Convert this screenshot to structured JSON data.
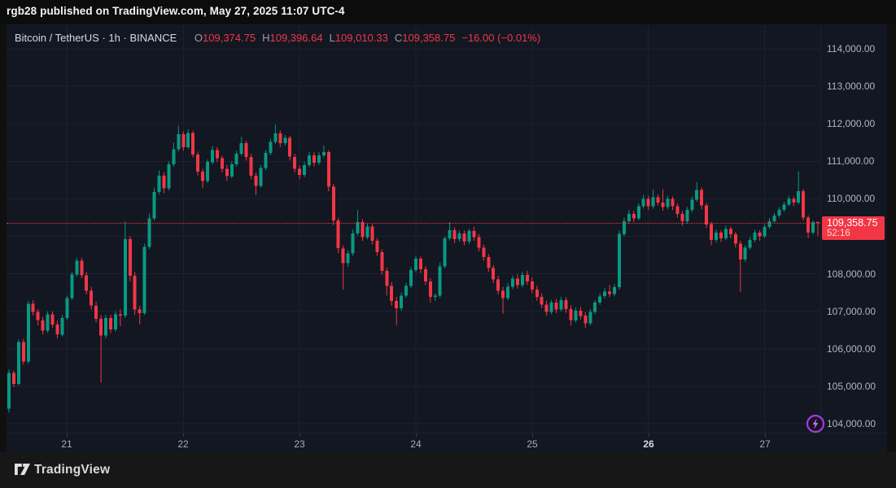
{
  "attribution": {
    "text": "rgb28 published on TradingView.com, May 27, 2025 11:07 UTC-4"
  },
  "header": {
    "symbol": "Bitcoin / TetherUS",
    "separator1": "·",
    "interval": "1h",
    "separator2": "·",
    "exchange": "BINANCE",
    "o_letter": "O",
    "o_value": "109,374.75",
    "h_letter": "H",
    "h_value": "109,396.64",
    "l_letter": "L",
    "l_value": "109,010.33",
    "c_letter": "C",
    "c_value": "109,358.75",
    "change": "−16.00 (−0.01%)"
  },
  "price_label": {
    "price": "109,358.75",
    "countdown": "52:16"
  },
  "footer": {
    "brand": "TradingView"
  },
  "colors": {
    "pane_background": "#131722",
    "outer_background": "#0c0c0c",
    "grid": "#1e2230",
    "up": "#089981",
    "down": "#f23645",
    "axis_text": "#b2b5be",
    "price_label_bg": "#f23645",
    "watermark_purple": "#a43ce0"
  },
  "chart_data": {
    "type": "candlestick",
    "title": "Bitcoin / TetherUS · 1h · BINANCE",
    "current_price": 109358.75,
    "countdown": "52:16",
    "price_gridlines": [
      104000,
      105000,
      106000,
      107000,
      108000,
      109000,
      110000,
      111000,
      112000,
      113000,
      114000
    ],
    "price_axis_labels": [
      {
        "value": 114000,
        "label": "114,000.00"
      },
      {
        "value": 113000,
        "label": "113,000.00"
      },
      {
        "value": 112000,
        "label": "112,000.00"
      },
      {
        "value": 111000,
        "label": "111,000.00"
      },
      {
        "value": 110000,
        "label": "110,000.00"
      },
      {
        "value": 108000,
        "label": "108,000.00"
      },
      {
        "value": 107000,
        "label": "107,000.00"
      },
      {
        "value": 106000,
        "label": "106,000.00"
      },
      {
        "value": 105000,
        "label": "105,000.00"
      },
      {
        "value": 104000,
        "label": "104,000.00"
      }
    ],
    "time_ticks": [
      {
        "label": "21",
        "bar": 12,
        "bold": false
      },
      {
        "label": "22",
        "bar": 36,
        "bold": false
      },
      {
        "label": "23",
        "bar": 60,
        "bold": false
      },
      {
        "label": "24",
        "bar": 84,
        "bold": false
      },
      {
        "label": "25",
        "bar": 108,
        "bold": false
      },
      {
        "label": "26",
        "bar": 132,
        "bold": true
      },
      {
        "label": "27",
        "bar": 156,
        "bold": false
      }
    ],
    "ohlc_current_bar": {
      "open": 109374.75,
      "high": 109396.64,
      "low": 109010.33,
      "close": 109358.75,
      "change": -16.0,
      "change_pct": -0.01
    },
    "candles": [
      [
        104400,
        105450,
        104300,
        105360
      ],
      [
        105360,
        105420,
        104980,
        105060
      ],
      [
        105060,
        106250,
        105020,
        106180
      ],
      [
        106180,
        106260,
        105580,
        105660
      ],
      [
        105660,
        107280,
        105600,
        107200
      ],
      [
        107200,
        107300,
        106880,
        106980
      ],
      [
        106980,
        107060,
        106620,
        106760
      ],
      [
        106760,
        106850,
        106380,
        106480
      ],
      [
        106480,
        107000,
        106420,
        106920
      ],
      [
        106920,
        107000,
        106560,
        106650
      ],
      [
        106650,
        106750,
        106280,
        106380
      ],
      [
        106380,
        106900,
        106330,
        106820
      ],
      [
        106820,
        107420,
        106760,
        107350
      ],
      [
        107350,
        108050,
        107300,
        107980
      ],
      [
        107980,
        108420,
        107920,
        108350
      ],
      [
        108350,
        108430,
        107880,
        107960
      ],
      [
        107960,
        108050,
        107450,
        107550
      ],
      [
        107550,
        107650,
        107050,
        107150
      ],
      [
        107150,
        107250,
        106700,
        106800
      ],
      [
        106800,
        106900,
        105100,
        106350
      ],
      [
        106350,
        106900,
        106280,
        106820
      ],
      [
        106820,
        106900,
        106420,
        106520
      ],
      [
        106520,
        107000,
        106460,
        106920
      ],
      [
        106920,
        107050,
        106600,
        106880
      ],
      [
        106880,
        109400,
        106820,
        108920
      ],
      [
        108920,
        109000,
        107800,
        107950
      ],
      [
        107950,
        108050,
        106900,
        107050
      ],
      [
        107050,
        107150,
        106650,
        106950
      ],
      [
        106950,
        108800,
        106900,
        108720
      ],
      [
        108720,
        109600,
        108660,
        109480
      ],
      [
        109480,
        110300,
        109420,
        110180
      ],
      [
        110180,
        110750,
        110120,
        110620
      ],
      [
        110620,
        110700,
        110150,
        110280
      ],
      [
        110280,
        111000,
        110220,
        110920
      ],
      [
        110920,
        111500,
        110860,
        111320
      ],
      [
        111320,
        111950,
        111260,
        111720
      ],
      [
        111720,
        111800,
        111280,
        111380
      ],
      [
        111380,
        111850,
        111320,
        111760
      ],
      [
        111760,
        111820,
        111100,
        111180
      ],
      [
        111180,
        111260,
        110620,
        110720
      ],
      [
        110720,
        110800,
        110280,
        110480
      ],
      [
        110480,
        111050,
        110420,
        110980
      ],
      [
        110980,
        111400,
        110920,
        111300
      ],
      [
        111300,
        111380,
        110980,
        111080
      ],
      [
        111080,
        111150,
        110700,
        110800
      ],
      [
        110800,
        110900,
        110480,
        110600
      ],
      [
        110600,
        111000,
        110550,
        110920
      ],
      [
        110920,
        111280,
        110860,
        111200
      ],
      [
        111200,
        111650,
        111150,
        111480
      ],
      [
        111480,
        111550,
        111020,
        111120
      ],
      [
        111120,
        111200,
        110520,
        110620
      ],
      [
        110620,
        110700,
        110100,
        110340
      ],
      [
        110340,
        110900,
        110300,
        110820
      ],
      [
        110820,
        111300,
        110760,
        111220
      ],
      [
        111220,
        111600,
        111160,
        111520
      ],
      [
        111520,
        111980,
        111460,
        111740
      ],
      [
        111740,
        111820,
        111380,
        111480
      ],
      [
        111480,
        111700,
        111420,
        111620
      ],
      [
        111620,
        111680,
        111020,
        111120
      ],
      [
        111120,
        111200,
        110700,
        110800
      ],
      [
        110800,
        110880,
        110520,
        110640
      ],
      [
        110640,
        110980,
        110580,
        110900
      ],
      [
        110900,
        111250,
        110850,
        111160
      ],
      [
        111160,
        111240,
        110860,
        110960
      ],
      [
        110960,
        111250,
        110900,
        111160
      ],
      [
        111160,
        111420,
        111100,
        111240
      ],
      [
        111240,
        111300,
        110200,
        110320
      ],
      [
        110320,
        110400,
        109300,
        109420
      ],
      [
        109420,
        109500,
        108550,
        108680
      ],
      [
        108680,
        108760,
        107580,
        108280
      ],
      [
        108280,
        108620,
        108180,
        108540
      ],
      [
        108540,
        109180,
        108480,
        109080
      ],
      [
        109080,
        109700,
        109020,
        109380
      ],
      [
        109380,
        109450,
        108880,
        108980
      ],
      [
        108980,
        109350,
        108920,
        109260
      ],
      [
        109260,
        109330,
        108780,
        108880
      ],
      [
        108880,
        108950,
        108480,
        108580
      ],
      [
        108580,
        108650,
        107980,
        108080
      ],
      [
        108080,
        108160,
        107420,
        107680
      ],
      [
        107680,
        107780,
        107150,
        107280
      ],
      [
        107280,
        107380,
        106630,
        107080
      ],
      [
        107080,
        107500,
        107020,
        107420
      ],
      [
        107420,
        107760,
        107360,
        107680
      ],
      [
        107680,
        108180,
        107620,
        108100
      ],
      [
        108100,
        108480,
        108040,
        108400
      ],
      [
        108400,
        108460,
        108020,
        108120
      ],
      [
        108120,
        108200,
        107700,
        107800
      ],
      [
        107800,
        107880,
        107230,
        107380
      ],
      [
        107380,
        107480,
        107280,
        107420
      ],
      [
        107420,
        108300,
        107360,
        108200
      ],
      [
        108200,
        109000,
        108140,
        108950
      ],
      [
        108950,
        109380,
        108890,
        109160
      ],
      [
        109160,
        109240,
        108820,
        108920
      ],
      [
        108920,
        109150,
        108860,
        109080
      ],
      [
        109080,
        109160,
        108760,
        108860
      ],
      [
        108860,
        109200,
        108800,
        109140
      ],
      [
        109140,
        109260,
        108880,
        108980
      ],
      [
        108980,
        109060,
        108600,
        108700
      ],
      [
        108700,
        108780,
        108350,
        108450
      ],
      [
        108450,
        108530,
        108050,
        108150
      ],
      [
        108150,
        108230,
        107750,
        107850
      ],
      [
        107850,
        107950,
        107450,
        107550
      ],
      [
        107550,
        107650,
        106940,
        107350
      ],
      [
        107350,
        107750,
        107290,
        107650
      ],
      [
        107650,
        107950,
        107590,
        107870
      ],
      [
        107870,
        107990,
        107600,
        107700
      ],
      [
        107700,
        108050,
        107640,
        107970
      ],
      [
        107970,
        108080,
        107700,
        107800
      ],
      [
        107800,
        107900,
        107480,
        107580
      ],
      [
        107580,
        107680,
        107280,
        107380
      ],
      [
        107380,
        107480,
        107080,
        107180
      ],
      [
        107180,
        107280,
        106880,
        106980
      ],
      [
        106980,
        107300,
        106920,
        107230
      ],
      [
        107230,
        107330,
        106950,
        107050
      ],
      [
        107050,
        107380,
        107000,
        107300
      ],
      [
        107300,
        107380,
        106960,
        107060
      ],
      [
        107060,
        107160,
        106620,
        106760
      ],
      [
        106760,
        107100,
        106700,
        107020
      ],
      [
        107020,
        107120,
        106780,
        106880
      ],
      [
        106880,
        106980,
        106560,
        106680
      ],
      [
        106680,
        107060,
        106620,
        106980
      ],
      [
        106980,
        107300,
        106920,
        107230
      ],
      [
        107230,
        107480,
        107170,
        107400
      ],
      [
        107400,
        107620,
        107340,
        107520
      ],
      [
        107520,
        107700,
        107380,
        107460
      ],
      [
        107460,
        107720,
        107400,
        107640
      ],
      [
        107640,
        109150,
        107580,
        109060
      ],
      [
        109060,
        109500,
        109000,
        109400
      ],
      [
        109400,
        109700,
        109340,
        109600
      ],
      [
        109600,
        109680,
        109380,
        109480
      ],
      [
        109480,
        109880,
        109420,
        109800
      ],
      [
        109800,
        110100,
        109740,
        110000
      ],
      [
        110000,
        110080,
        109700,
        109800
      ],
      [
        109800,
        110250,
        109740,
        110040
      ],
      [
        110040,
        110120,
        109820,
        109900
      ],
      [
        109900,
        110250,
        109680,
        109780
      ],
      [
        109780,
        110080,
        109720,
        110000
      ],
      [
        110000,
        110060,
        109700,
        109800
      ],
      [
        109800,
        109880,
        109500,
        109600
      ],
      [
        109600,
        109680,
        109280,
        109400
      ],
      [
        109400,
        109780,
        109340,
        109700
      ],
      [
        109700,
        110060,
        109640,
        109980
      ],
      [
        109980,
        110450,
        109920,
        110240
      ],
      [
        110240,
        110300,
        109720,
        109820
      ],
      [
        109820,
        109880,
        109220,
        109320
      ],
      [
        109320,
        109380,
        108760,
        108900
      ],
      [
        108900,
        109180,
        108840,
        109100
      ],
      [
        109100,
        109160,
        108850,
        108950
      ],
      [
        108950,
        109280,
        108900,
        109200
      ],
      [
        109200,
        109260,
        108950,
        109050
      ],
      [
        109050,
        109120,
        108700,
        108800
      ],
      [
        108800,
        108880,
        107520,
        108380
      ],
      [
        108380,
        108760,
        108320,
        108700
      ],
      [
        108700,
        108980,
        108640,
        108900
      ],
      [
        108900,
        109180,
        108840,
        109100
      ],
      [
        109100,
        109160,
        108880,
        109000
      ],
      [
        109000,
        109320,
        108950,
        109250
      ],
      [
        109250,
        109480,
        109200,
        109400
      ],
      [
        109400,
        109620,
        109340,
        109550
      ],
      [
        109550,
        109780,
        109500,
        109700
      ],
      [
        109700,
        109920,
        109650,
        109850
      ],
      [
        109850,
        110080,
        109800,
        110000
      ],
      [
        110000,
        110060,
        109800,
        109900
      ],
      [
        109900,
        110730,
        109850,
        110200
      ],
      [
        110200,
        110260,
        109420,
        109500
      ],
      [
        109500,
        109560,
        108950,
        109100
      ],
      [
        109100,
        109420,
        109050,
        109375
      ],
      [
        109374.75,
        109396.64,
        109010.33,
        109358.75
      ]
    ]
  }
}
